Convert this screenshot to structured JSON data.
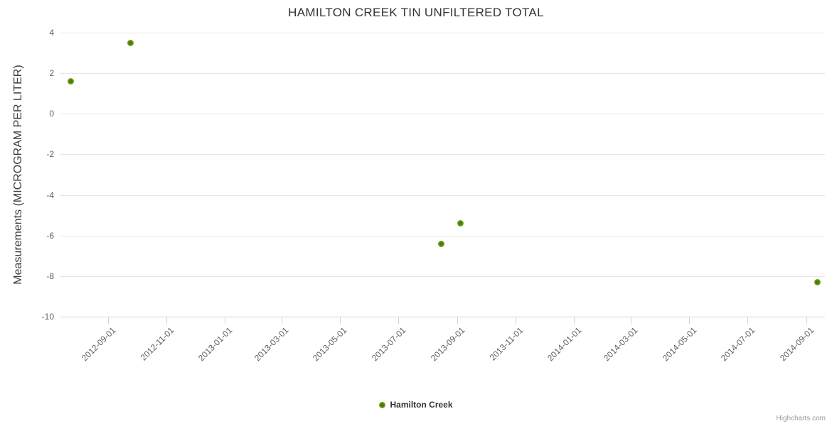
{
  "title": "HAMILTON CREEK TIN UNFILTERED TOTAL",
  "credits": "Highcharts.com",
  "colors": {
    "series": "#74b41e",
    "series_marker_center": "#4a7a08",
    "grid": "#e6e6e6",
    "axis_line": "#ccd6eb",
    "tick_label": "#606060",
    "title": "#333333",
    "axis_title": "#3c3c3c",
    "legend_text": "#333333",
    "credits_text": "#999999",
    "background": "#ffffff"
  },
  "legend": {
    "items": [
      {
        "label": "Hamilton Creek",
        "color": "#74b41e"
      }
    ]
  },
  "chart_data": {
    "type": "scatter",
    "title": "HAMILTON CREEK TIN UNFILTERED TOTAL",
    "xlabel": "",
    "ylabel": "Measurements (MICROGRAM PER LITER)",
    "ylim": [
      -10,
      4
    ],
    "y_ticks": [
      4,
      2,
      0,
      -2,
      -4,
      -6,
      -8,
      -10
    ],
    "x_ticks": [
      "2012-09-01",
      "2012-11-01",
      "2013-01-01",
      "2013-03-01",
      "2013-05-01",
      "2013-07-01",
      "2013-09-01",
      "2013-11-01",
      "2014-01-01",
      "2014-03-01",
      "2014-05-01",
      "2014-07-01",
      "2014-09-01"
    ],
    "x_range": [
      "2012-07-13",
      "2014-09-20"
    ],
    "grid": "horizontal-only",
    "legend_position": "bottom-center",
    "series": [
      {
        "name": "Hamilton Creek",
        "color": "#74b41e",
        "marker_center_color": "#4a7a08",
        "points": [
          {
            "x": "2012-07-24",
            "y": 1.6
          },
          {
            "x": "2012-09-24",
            "y": 3.5
          },
          {
            "x": "2013-08-15",
            "y": -6.4
          },
          {
            "x": "2013-09-04",
            "y": -5.4
          },
          {
            "x": "2014-09-12",
            "y": -8.3
          }
        ]
      }
    ]
  }
}
